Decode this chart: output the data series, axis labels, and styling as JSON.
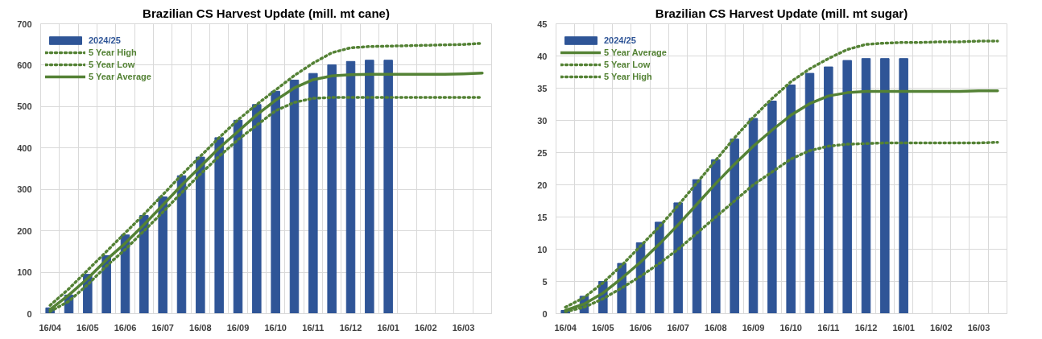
{
  "chart_data": [
    {
      "type": "bar",
      "title": "Brazilian CS Harvest Update (mill. mt cane)",
      "categories": [
        "16/04",
        null,
        "16/05",
        null,
        "16/06",
        null,
        "16/07",
        null,
        "16/08",
        null,
        "16/09",
        null,
        "16/10",
        null,
        "16/11",
        null,
        "16/12",
        null,
        "16/01",
        null,
        "16/02",
        null,
        "16/03",
        null
      ],
      "ylim": [
        0,
        700
      ],
      "yticks": [
        0,
        100,
        200,
        300,
        400,
        500,
        600,
        700
      ],
      "grid": true,
      "legend": "top left",
      "series": [
        {
          "name": "2024/25",
          "type": "bar",
          "color": "#2f5597",
          "values": [
            14,
            45,
            95,
            140,
            190,
            237,
            282,
            333,
            378,
            425,
            467,
            505,
            537,
            564,
            580,
            601,
            609,
            612,
            612,
            null,
            null,
            null,
            null,
            null
          ]
        },
        {
          "name": "5 Year High",
          "type": "line",
          "line_style": "dotted",
          "color": "#548235",
          "values": [
            20,
            60,
            105,
            150,
            195,
            240,
            287,
            335,
            380,
            425,
            468,
            505,
            540,
            575,
            605,
            630,
            642,
            645,
            646,
            647,
            648,
            649,
            650,
            653
          ]
        },
        {
          "name": "5 Year Low",
          "type": "line",
          "line_style": "dotted",
          "color": "#548235",
          "values": [
            5,
            30,
            70,
            115,
            155,
            200,
            245,
            292,
            337,
            380,
            420,
            455,
            490,
            510,
            520,
            522,
            522,
            522,
            522,
            522,
            522,
            522,
            522,
            522
          ]
        },
        {
          "name": "5 Year Average",
          "type": "line",
          "line_style": "solid",
          "color": "#548235",
          "values": [
            10,
            45,
            85,
            130,
            170,
            215,
            262,
            310,
            355,
            400,
            440,
            480,
            515,
            545,
            565,
            574,
            577,
            578,
            578,
            578,
            578,
            578,
            579,
            581
          ]
        }
      ]
    },
    {
      "type": "bar",
      "title": "Brazilian CS Harvest Update (mill. mt sugar)",
      "categories": [
        "16/04",
        null,
        "16/05",
        null,
        "16/06",
        null,
        "16/07",
        null,
        "16/08",
        null,
        "16/09",
        null,
        "16/10",
        null,
        "16/11",
        null,
        "16/12",
        null,
        "16/01",
        null,
        "16/02",
        null,
        "16/03",
        null
      ],
      "ylim": [
        0,
        45
      ],
      "yticks": [
        0,
        5,
        10,
        15,
        20,
        25,
        30,
        35,
        40,
        45
      ],
      "grid": true,
      "legend": "top left",
      "series": [
        {
          "name": "2024/25",
          "type": "bar",
          "color": "#2f5597",
          "values": [
            0.5,
            2.7,
            5,
            7.8,
            11,
            14.2,
            17.2,
            20.8,
            23.9,
            27.1,
            30.3,
            33,
            35.5,
            37.3,
            38.3,
            39.3,
            39.6,
            39.6,
            39.6,
            null,
            null,
            null,
            null,
            null
          ]
        },
        {
          "name": "5 Year Average",
          "type": "line",
          "line_style": "solid",
          "color": "#548235",
          "values": [
            0.5,
            1.5,
            3.2,
            5.5,
            8,
            10.8,
            13.8,
            17,
            20.2,
            23.2,
            26,
            28.5,
            30.8,
            32.6,
            33.8,
            34.3,
            34.5,
            34.5,
            34.5,
            34.5,
            34.5,
            34.5,
            34.6,
            34.6
          ]
        },
        {
          "name": "5 Year Low",
          "type": "line",
          "line_style": "dotted",
          "color": "#548235",
          "values": [
            0.3,
            1,
            2.3,
            4,
            5.8,
            7.8,
            10,
            12.5,
            15,
            17.5,
            20,
            22,
            24,
            25.3,
            26,
            26.3,
            26.4,
            26.5,
            26.5,
            26.5,
            26.5,
            26.5,
            26.5,
            26.6
          ]
        },
        {
          "name": "5 Year High",
          "type": "line",
          "line_style": "dotted",
          "color": "#548235",
          "values": [
            1,
            2.5,
            4.8,
            7.5,
            10.5,
            13.5,
            16.8,
            20.3,
            23.8,
            27.3,
            30.5,
            33.4,
            36,
            38,
            39.6,
            41,
            41.8,
            42,
            42.1,
            42.1,
            42.2,
            42.2,
            42.3,
            42.3
          ]
        }
      ]
    }
  ]
}
